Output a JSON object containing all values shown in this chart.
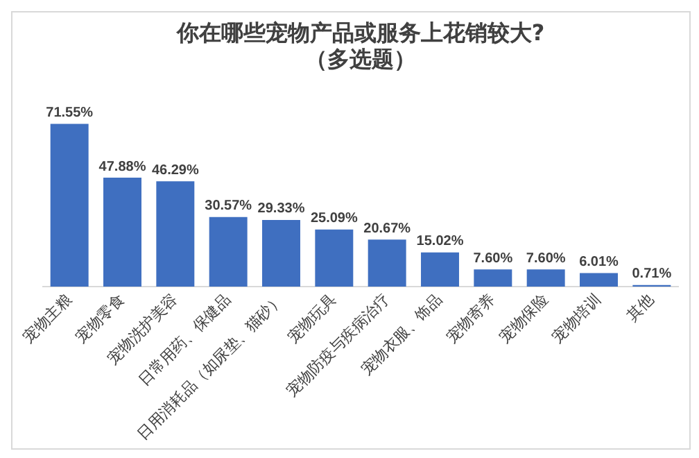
{
  "chart_data": {
    "type": "bar",
    "title": "你在哪些宠物产品或服务上花销较大?",
    "subtitle": "（多选题）",
    "categories": [
      "宠物主粮",
      "宠物零食",
      "宠物洗护美容",
      "日常用药、保健品",
      "日用消耗品（如尿垫、猫砂）",
      "宠物玩具",
      "宠物防疫与疾病治疗",
      "宠物衣服、饰品",
      "宠物寄养",
      "宠物保险",
      "宠物培训",
      "其他"
    ],
    "values": [
      71.55,
      47.88,
      46.29,
      30.57,
      29.33,
      25.09,
      20.67,
      15.02,
      7.6,
      7.6,
      6.01,
      0.71
    ],
    "value_labels": [
      "71.55%",
      "47.88%",
      "46.29%",
      "30.57%",
      "29.33%",
      "25.09%",
      "20.67%",
      "15.02%",
      "7.60%",
      "7.60%",
      "6.01%",
      "0.71%"
    ],
    "color": "#3f6fc0",
    "tick_labels": "x",
    "grid": false,
    "legend": false
  }
}
